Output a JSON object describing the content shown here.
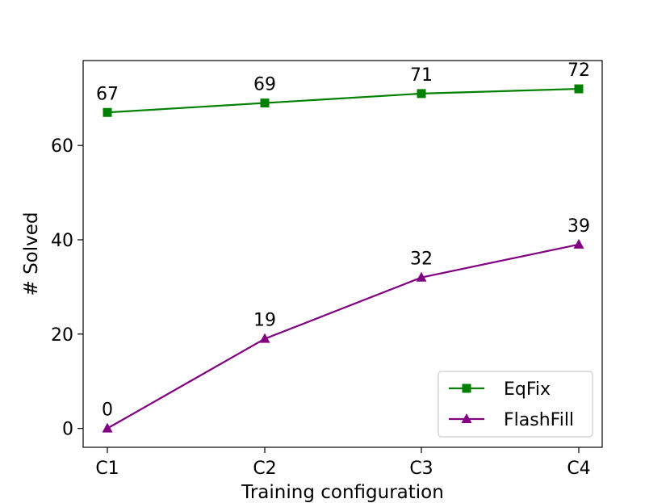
{
  "chart_data": {
    "type": "line",
    "categories": [
      "C1",
      "C2",
      "C3",
      "C4"
    ],
    "xlabel": "Training configuration",
    "ylabel": "# Solved",
    "ylim": [
      -4,
      78
    ],
    "yticks": [
      0,
      20,
      40,
      60
    ],
    "grid": false,
    "legend_position": "lower-right",
    "series": [
      {
        "name": "EqFix",
        "values": [
          67,
          69,
          71,
          72
        ],
        "color": "#008000",
        "marker": "square"
      },
      {
        "name": "FlashFill",
        "values": [
          0,
          19,
          32,
          39
        ],
        "color": "#800080",
        "marker": "triangle"
      }
    ]
  }
}
